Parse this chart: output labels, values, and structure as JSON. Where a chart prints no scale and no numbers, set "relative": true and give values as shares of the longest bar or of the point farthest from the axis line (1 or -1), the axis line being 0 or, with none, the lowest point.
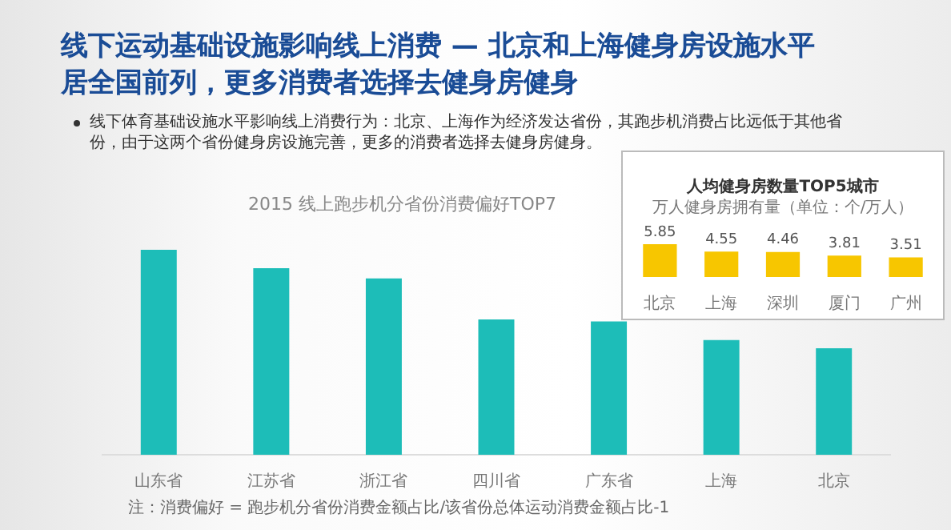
{
  "chart_data": [
    {
      "type": "other",
      "title": "线下运动基础设施影响线上消费 — 北京和上海健身房设施水平居全国前列，更多消费者选择去健身房健身",
      "annotations": [
        "线下体育基础设施水平影响线上消费行为：北京、上海作为经济发达省份，其跑步机消费占比远低于其他省份，由于这两个省份健身房设施完善，更多的消费者选择去健身房健身。"
      ]
    },
    {
      "type": "bar",
      "title": "2015 线上跑步机分省份消费偏好TOP7",
      "categories": [
        "山东省",
        "江苏省",
        "浙江省",
        "四川省",
        "广东省",
        "上海",
        "北京"
      ],
      "values": [
        1,
        0.91,
        0.86,
        0.66,
        0.65,
        0.56,
        0.52
      ],
      "relative": true,
      "color": "#1dbdb8",
      "annotations": [
        "注：消费偏好 = 跑步机分省份消费金额占比/该省份总体运动消费金额占比-1"
      ]
    },
    {
      "type": "bar",
      "title": "人均健身房数量TOP5城市",
      "subtitle": "万人健身房拥有量（单位：个/万人）",
      "categories": [
        "北京",
        "上海",
        "深圳",
        "厦门",
        "广州"
      ],
      "values": [
        5.85,
        4.55,
        4.46,
        3.81,
        3.51
      ],
      "color": "#f7c600",
      "data_labels": true
    }
  ]
}
